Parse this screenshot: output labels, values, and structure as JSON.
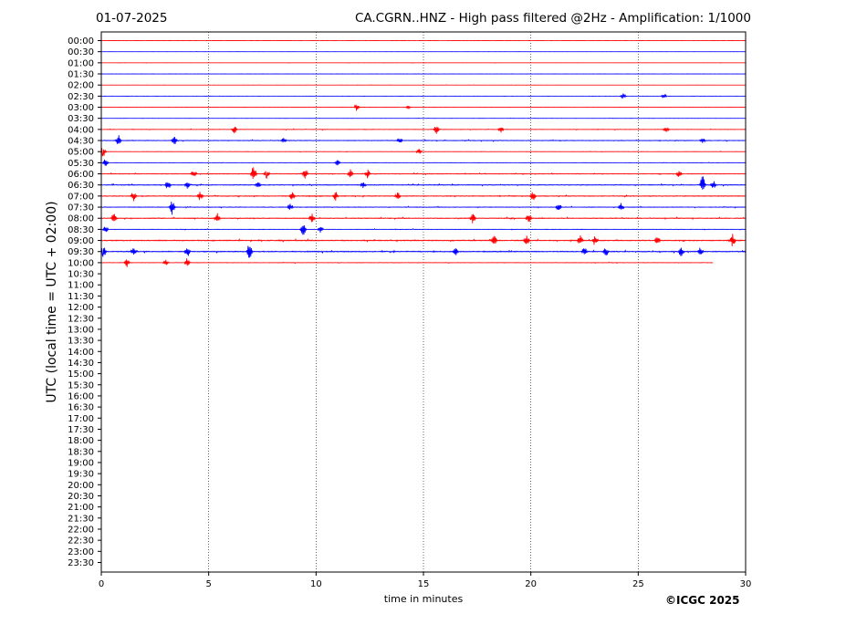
{
  "header": {
    "date": "01-07-2025",
    "title": "CA.CGRN..HNZ - High pass filtered @2Hz - Amplification: 1/1000"
  },
  "copyright": "©ICGC 2025",
  "chart_data": {
    "type": "line",
    "title": "CA.CGRN..HNZ - High pass filtered @2Hz - Amplification: 1/1000",
    "xlabel": "time in minutes",
    "ylabel": "UTC (local time = UTC + 02:00)",
    "xlim": [
      0,
      30
    ],
    "x_ticks": [
      0,
      5,
      10,
      15,
      20,
      25,
      30
    ],
    "x_tick_labels": [
      "0",
      "5",
      "10",
      "15",
      "20",
      "25",
      "30"
    ],
    "y_tick_labels": [
      "00:00",
      "00:30",
      "01:00",
      "01:30",
      "02:00",
      "02:30",
      "03:00",
      "03:30",
      "04:00",
      "04:30",
      "05:00",
      "05:30",
      "06:00",
      "06:30",
      "07:00",
      "07:30",
      "08:00",
      "08:30",
      "09:00",
      "09:30",
      "10:00",
      "10:30",
      "11:00",
      "11:30",
      "12:00",
      "12:30",
      "13:00",
      "13:30",
      "14:00",
      "14:30",
      "15:00",
      "15:30",
      "16:00",
      "16:30",
      "17:00",
      "17:30",
      "18:00",
      "18:30",
      "19:00",
      "19:30",
      "20:00",
      "20:30",
      "21:00",
      "21:30",
      "22:00",
      "22:30",
      "23:00",
      "23:30"
    ],
    "grid": "vertical dotted at x ticks",
    "colors": {
      "even_row": "#ff0000",
      "odd_row": "#0000ff"
    },
    "traces": [
      {
        "label": "00:00",
        "end_minute": 30,
        "activity": 0.05,
        "events": []
      },
      {
        "label": "00:30",
        "end_minute": 30,
        "activity": 0.05,
        "events": []
      },
      {
        "label": "01:00",
        "end_minute": 30,
        "activity": 0.05,
        "events": []
      },
      {
        "label": "01:30",
        "end_minute": 30,
        "activity": 0.05,
        "events": []
      },
      {
        "label": "02:00",
        "end_minute": 30,
        "activity": 0.06,
        "events": []
      },
      {
        "label": "02:30",
        "end_minute": 30,
        "activity": 0.06,
        "events": [
          [
            24.3,
            0.3
          ],
          [
            26.2,
            0.25
          ]
        ]
      },
      {
        "label": "03:00",
        "end_minute": 30,
        "activity": 0.07,
        "events": [
          [
            11.9,
            0.4
          ],
          [
            14.3,
            0.2
          ]
        ]
      },
      {
        "label": "03:30",
        "end_minute": 30,
        "activity": 0.07,
        "events": []
      },
      {
        "label": "04:00",
        "end_minute": 30,
        "activity": 0.15,
        "events": [
          [
            6.2,
            0.4
          ],
          [
            15.6,
            0.5
          ],
          [
            18.6,
            0.4
          ],
          [
            26.3,
            0.3
          ]
        ]
      },
      {
        "label": "04:30",
        "end_minute": 30,
        "activity": 0.2,
        "events": [
          [
            0.8,
            0.6
          ],
          [
            3.4,
            0.5
          ],
          [
            8.5,
            0.3
          ],
          [
            13.9,
            0.35
          ],
          [
            28.0,
            0.3
          ]
        ]
      },
      {
        "label": "05:00",
        "end_minute": 30,
        "activity": 0.12,
        "events": [
          [
            0.1,
            0.7
          ],
          [
            14.8,
            0.3
          ]
        ]
      },
      {
        "label": "05:30",
        "end_minute": 30,
        "activity": 0.12,
        "events": [
          [
            0.2,
            0.5
          ],
          [
            11.0,
            0.3
          ]
        ]
      },
      {
        "label": "06:00",
        "end_minute": 30,
        "activity": 0.2,
        "events": [
          [
            4.3,
            0.4
          ],
          [
            7.1,
            1.0
          ],
          [
            7.7,
            0.5
          ],
          [
            9.5,
            0.6
          ],
          [
            11.6,
            0.5
          ],
          [
            12.4,
            0.45
          ],
          [
            26.9,
            0.4
          ]
        ]
      },
      {
        "label": "06:30",
        "end_minute": 30,
        "activity": 0.25,
        "events": [
          [
            3.1,
            0.6
          ],
          [
            4.0,
            0.4
          ],
          [
            7.3,
            0.3
          ],
          [
            12.2,
            0.4
          ],
          [
            28.0,
            1.0
          ],
          [
            28.5,
            0.5
          ]
        ]
      },
      {
        "label": "07:00",
        "end_minute": 30,
        "activity": 0.25,
        "events": [
          [
            1.5,
            0.5
          ],
          [
            4.6,
            0.5
          ],
          [
            8.9,
            0.5
          ],
          [
            10.9,
            0.5
          ],
          [
            13.8,
            0.45
          ],
          [
            20.1,
            0.5
          ]
        ]
      },
      {
        "label": "07:30",
        "end_minute": 30,
        "activity": 0.2,
        "events": [
          [
            3.3,
            1.0
          ],
          [
            8.8,
            0.4
          ],
          [
            21.3,
            0.5
          ],
          [
            24.2,
            0.5
          ]
        ]
      },
      {
        "label": "08:00",
        "end_minute": 30,
        "activity": 0.25,
        "events": [
          [
            0.6,
            0.7
          ],
          [
            5.4,
            0.6
          ],
          [
            9.8,
            0.5
          ],
          [
            17.3,
            0.6
          ],
          [
            19.9,
            0.6
          ]
        ]
      },
      {
        "label": "08:30",
        "end_minute": 30,
        "activity": 0.15,
        "events": [
          [
            0.2,
            0.4
          ],
          [
            9.4,
            1.0
          ],
          [
            10.2,
            0.4
          ]
        ]
      },
      {
        "label": "09:00",
        "end_minute": 30,
        "activity": 0.3,
        "events": [
          [
            18.3,
            0.5
          ],
          [
            19.8,
            0.6
          ],
          [
            22.3,
            0.5
          ],
          [
            23.0,
            0.5
          ],
          [
            25.9,
            0.55
          ],
          [
            29.4,
            0.7
          ]
        ]
      },
      {
        "label": "09:30",
        "end_minute": 30,
        "activity": 0.3,
        "events": [
          [
            0.1,
            0.6
          ],
          [
            1.5,
            0.5
          ],
          [
            4.0,
            0.7
          ],
          [
            6.9,
            1.0
          ],
          [
            16.5,
            0.4
          ],
          [
            22.5,
            0.5
          ],
          [
            23.5,
            0.5
          ],
          [
            27.0,
            0.55
          ],
          [
            27.9,
            0.45
          ]
        ]
      },
      {
        "label": "10:00",
        "end_minute": 28.5,
        "activity": 0.15,
        "events": [
          [
            1.2,
            0.5
          ],
          [
            3.0,
            0.3
          ],
          [
            4.0,
            0.5
          ]
        ]
      }
    ]
  }
}
